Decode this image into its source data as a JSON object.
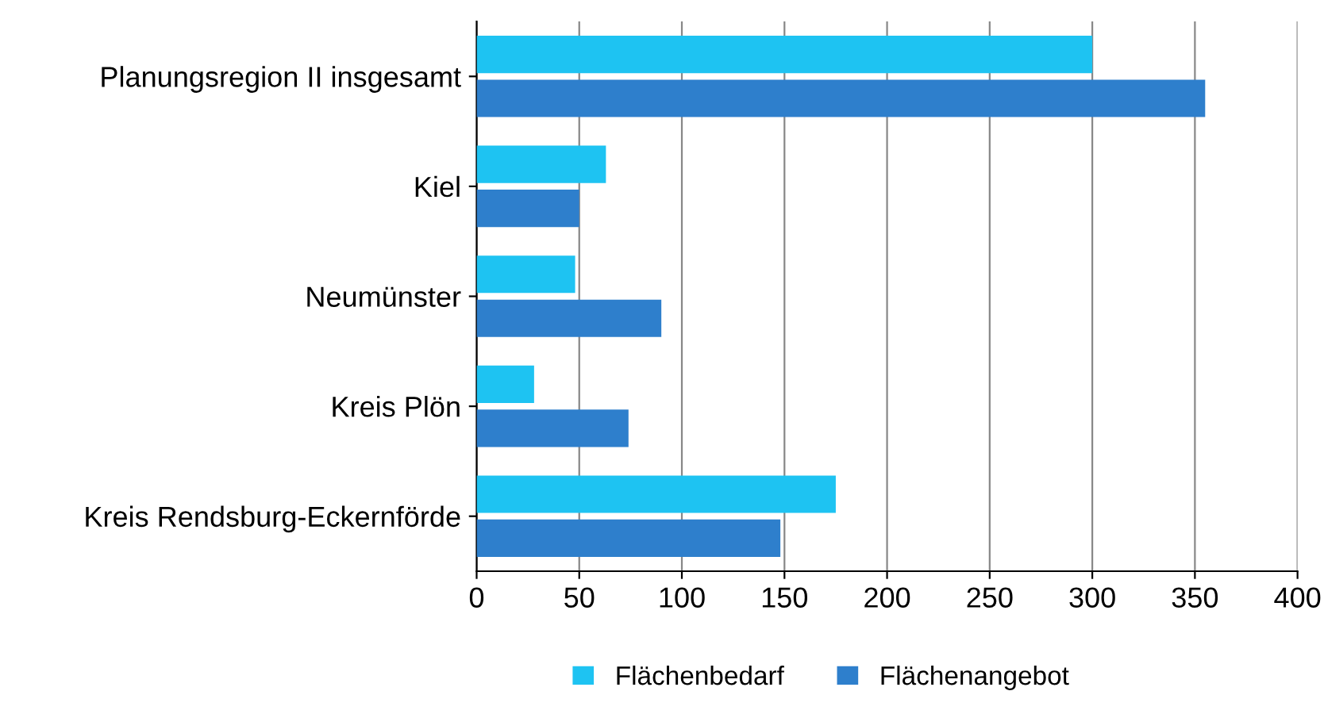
{
  "chart_data": {
    "type": "bar",
    "orientation": "horizontal",
    "categories": [
      "Planungsregion II insgesamt",
      "Kiel",
      "Neumünster",
      "Kreis Plön",
      "Kreis Rendsburg-Eckernförde"
    ],
    "series": [
      {
        "name": "Flächenbedarf",
        "color": "#1ec3f2",
        "values": [
          300,
          63,
          48,
          28,
          175
        ]
      },
      {
        "name": "Flächenangebot",
        "color": "#2e7fcc",
        "values": [
          355,
          50,
          90,
          74,
          148
        ]
      }
    ],
    "xlim": [
      0,
      400
    ],
    "xticks": [
      0,
      50,
      100,
      150,
      200,
      250,
      300,
      350,
      400
    ],
    "grid": "x",
    "legend": "bottom"
  }
}
